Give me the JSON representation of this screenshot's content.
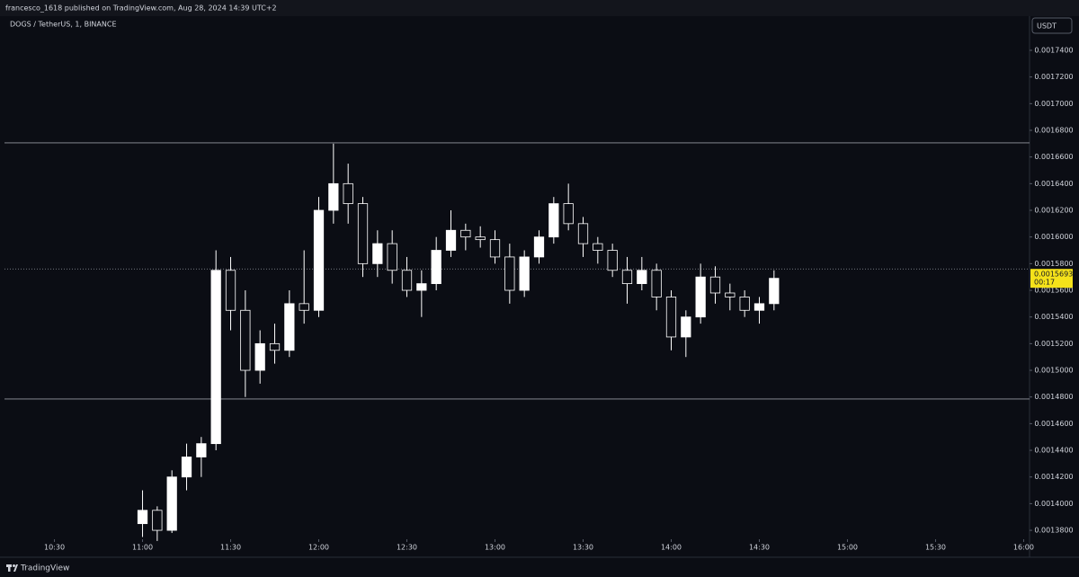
{
  "header": {
    "publisher": "francesco_1618 published on TradingView.com, Aug 28, 2024 14:39 UTC+2"
  },
  "footer": {
    "brand": "TradingView"
  },
  "chart_data": {
    "type": "candlestick",
    "title": "DOGS / TetherUS, 1, BINANCE",
    "currency": "USDT",
    "up_color": "#ffffff",
    "down_color": "#0b0d14",
    "wick_color": "#ffffff",
    "x": [
      "11:00",
      "11:05",
      "11:10",
      "11:15",
      "11:20",
      "11:25",
      "11:30",
      "11:35",
      "11:40",
      "11:45",
      "11:50",
      "11:55",
      "12:00",
      "12:05",
      "12:10",
      "12:15",
      "12:20",
      "12:25",
      "12:30",
      "12:35",
      "12:40",
      "12:45",
      "12:50",
      "12:55",
      "13:00",
      "13:05",
      "13:10",
      "13:15",
      "13:20",
      "13:25",
      "13:30",
      "13:35",
      "13:40",
      "13:45",
      "13:50",
      "13:55",
      "14:00",
      "14:05",
      "14:10",
      "14:15",
      "14:20",
      "14:25",
      "14:30",
      "14:35"
    ],
    "open": [
      0.001385,
      0.001395,
      0.00138,
      0.00142,
      0.001435,
      0.001445,
      0.001575,
      0.001545,
      0.0015,
      0.00152,
      0.001515,
      0.00155,
      0.001545,
      0.00162,
      0.00164,
      0.001625,
      0.00158,
      0.001595,
      0.001575,
      0.00156,
      0.001565,
      0.00159,
      0.001605,
      0.0016,
      0.001598,
      0.001585,
      0.00156,
      0.001585,
      0.0016,
      0.001625,
      0.00161,
      0.001595,
      0.00159,
      0.001575,
      0.001565,
      0.001575,
      0.001555,
      0.001525,
      0.00154,
      0.00157,
      0.001558,
      0.001555,
      0.001545,
      0.00155
    ],
    "high": [
      0.00141,
      0.001398,
      0.001425,
      0.001445,
      0.00145,
      0.00159,
      0.001585,
      0.00156,
      0.00153,
      0.001535,
      0.00156,
      0.00159,
      0.00163,
      0.00167,
      0.001655,
      0.00163,
      0.001605,
      0.001605,
      0.001585,
      0.001575,
      0.0016,
      0.00162,
      0.00161,
      0.001608,
      0.001605,
      0.001595,
      0.00159,
      0.001605,
      0.00163,
      0.00164,
      0.001615,
      0.0016,
      0.001595,
      0.001585,
      0.001585,
      0.00158,
      0.00156,
      0.001545,
      0.00158,
      0.001578,
      0.001565,
      0.00156,
      0.001555,
      0.001575
    ],
    "low": [
      0.001375,
      0.001372,
      0.001378,
      0.00141,
      0.00142,
      0.00144,
      0.00153,
      0.00148,
      0.00149,
      0.001505,
      0.00151,
      0.001535,
      0.00154,
      0.00161,
      0.00161,
      0.00157,
      0.00157,
      0.001565,
      0.001555,
      0.00154,
      0.00156,
      0.001585,
      0.00159,
      0.001592,
      0.00158,
      0.00155,
      0.001555,
      0.00158,
      0.001595,
      0.001605,
      0.001585,
      0.00158,
      0.00157,
      0.00155,
      0.00156,
      0.001545,
      0.001515,
      0.00151,
      0.001535,
      0.00155,
      0.001545,
      0.00154,
      0.001535,
      0.001545
    ],
    "close": [
      0.001395,
      0.00138,
      0.00142,
      0.001435,
      0.001445,
      0.001575,
      0.001545,
      0.0015,
      0.00152,
      0.001515,
      0.00155,
      0.001545,
      0.00162,
      0.00164,
      0.001625,
      0.00158,
      0.001595,
      0.001575,
      0.00156,
      0.001565,
      0.00159,
      0.001605,
      0.0016,
      0.001598,
      0.001585,
      0.00156,
      0.001585,
      0.0016,
      0.001625,
      0.00161,
      0.001595,
      0.00159,
      0.001575,
      0.001565,
      0.001575,
      0.001555,
      0.001525,
      0.00154,
      0.00157,
      0.001558,
      0.001555,
      0.001545,
      0.00155,
      0.001569
    ],
    "xlim": [
      "10:13",
      "16:02"
    ],
    "xticks": [
      "10:30",
      "11:00",
      "11:30",
      "12:00",
      "12:30",
      "13:00",
      "13:30",
      "14:00",
      "14:30",
      "15:00",
      "15:30",
      "16:00"
    ],
    "ylim": [
      0.0013733,
      0.0017656
    ],
    "yticks": [
      {
        "value": 0.00138,
        "label": "0.0013800"
      },
      {
        "value": 0.0014,
        "label": "0.0014000"
      },
      {
        "value": 0.00142,
        "label": "0.0014200"
      },
      {
        "value": 0.00144,
        "label": "0.0014400"
      },
      {
        "value": 0.00146,
        "label": "0.0014600"
      },
      {
        "value": 0.00148,
        "label": "0.0014800"
      },
      {
        "value": 0.0015,
        "label": "0.0015000"
      },
      {
        "value": 0.00152,
        "label": "0.0015200"
      },
      {
        "value": 0.00154,
        "label": "0.0015400"
      },
      {
        "value": 0.00156,
        "label": "0.0015600"
      },
      {
        "value": 0.00158,
        "label": "0.0015800"
      },
      {
        "value": 0.0016,
        "label": "0.0016000"
      },
      {
        "value": 0.00162,
        "label": "0.0016200"
      },
      {
        "value": 0.00164,
        "label": "0.0016400"
      },
      {
        "value": 0.00166,
        "label": "0.0016600"
      },
      {
        "value": 0.00168,
        "label": "0.0016800"
      },
      {
        "value": 0.0017,
        "label": "0.0017000"
      },
      {
        "value": 0.00172,
        "label": "0.0017200"
      },
      {
        "value": 0.00174,
        "label": "0.0017400"
      }
    ],
    "hlines": [
      0.0016706,
      0.0014785,
      0.001576
    ],
    "hline_styles": [
      "solid",
      "solid",
      "dotted"
    ],
    "last_price": 0.0015693,
    "countdown": "00:17",
    "last_price_color": "#f5e21a"
  }
}
